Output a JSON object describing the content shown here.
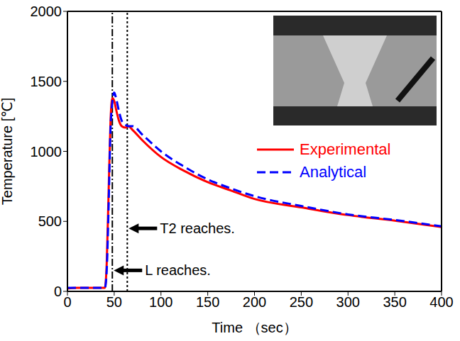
{
  "chart_data": {
    "type": "line",
    "x_label": "Time （sec）",
    "y_label": "Temperature [℃]",
    "x": [
      0,
      10,
      20,
      30,
      40,
      42,
      44,
      46,
      48,
      50,
      52,
      55,
      58,
      62,
      65,
      70,
      80,
      100,
      125,
      150,
      175,
      200,
      250,
      300,
      350,
      400
    ],
    "series": [
      {
        "name": "Experimental",
        "color": "#ff0000",
        "line_style": "solid",
        "values": [
          20,
          25,
          25,
          25,
          25,
          200,
          700,
          1200,
          1380,
          1360,
          1300,
          1220,
          1180,
          1170,
          1180,
          1150,
          1080,
          960,
          860,
          780,
          720,
          660,
          600,
          545,
          505,
          460
        ]
      },
      {
        "name": "Analytical",
        "color": "#0000ff",
        "line_style": "dashed",
        "values": [
          25,
          25,
          25,
          25,
          25,
          150,
          600,
          1150,
          1350,
          1420,
          1380,
          1290,
          1220,
          1190,
          1180,
          1180,
          1120,
          1000,
          890,
          800,
          735,
          680,
          610,
          550,
          510,
          465
        ]
      }
    ],
    "xlim": [
      0,
      400
    ],
    "xticks": [
      0,
      50,
      100,
      150,
      200,
      250,
      300,
      350,
      400
    ],
    "ylim": [
      0,
      2000
    ],
    "yticks": [
      0,
      500,
      1000,
      1500,
      2000
    ],
    "grid": false,
    "legend": "right",
    "annotations": [
      {
        "text": "L reaches.",
        "x": 48,
        "y": 150,
        "line_style": "dashdot"
      },
      {
        "text": "T2 reaches.",
        "x": 64,
        "y": 450,
        "line_style": "dotted"
      }
    ]
  }
}
